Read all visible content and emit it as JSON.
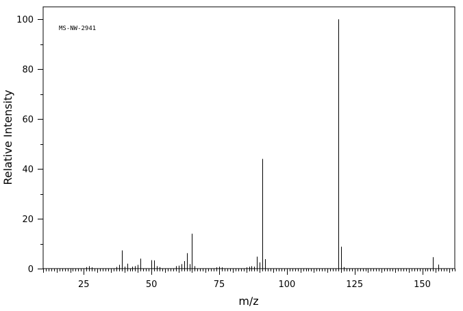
{
  "chart_data": {
    "type": "bar",
    "subtype": "mass-spectrum-stick",
    "annotation": "MS-NW-2941",
    "xlabel": "m/z",
    "ylabel": "Relative Intensity",
    "xlim": [
      10,
      162
    ],
    "ylim": [
      0,
      105
    ],
    "xticks": [
      25,
      50,
      75,
      100,
      125,
      150
    ],
    "yticks": [
      0,
      20,
      40,
      60,
      80,
      100
    ],
    "grid": false,
    "legend": "none",
    "peaks": [
      {
        "mz": 26,
        "intensity": 0.6
      },
      {
        "mz": 27,
        "intensity": 1.0
      },
      {
        "mz": 28,
        "intensity": 0.5
      },
      {
        "mz": 37,
        "intensity": 0.7
      },
      {
        "mz": 38,
        "intensity": 1.5
      },
      {
        "mz": 39,
        "intensity": 7.3
      },
      {
        "mz": 40,
        "intensity": 0.8
      },
      {
        "mz": 41,
        "intensity": 2.0
      },
      {
        "mz": 43,
        "intensity": 0.8
      },
      {
        "mz": 44,
        "intensity": 1.0
      },
      {
        "mz": 45,
        "intensity": 1.5
      },
      {
        "mz": 46,
        "intensity": 4.0
      },
      {
        "mz": 50,
        "intensity": 3.4
      },
      {
        "mz": 51,
        "intensity": 3.3
      },
      {
        "mz": 52,
        "intensity": 1.0
      },
      {
        "mz": 53,
        "intensity": 0.6
      },
      {
        "mz": 59,
        "intensity": 1.0
      },
      {
        "mz": 60,
        "intensity": 1.2
      },
      {
        "mz": 61,
        "intensity": 1.8
      },
      {
        "mz": 62,
        "intensity": 3.0
      },
      {
        "mz": 63,
        "intensity": 6.2
      },
      {
        "mz": 64,
        "intensity": 1.8
      },
      {
        "mz": 65,
        "intensity": 14.0
      },
      {
        "mz": 66,
        "intensity": 1.0
      },
      {
        "mz": 74,
        "intensity": 0.5
      },
      {
        "mz": 75,
        "intensity": 0.8
      },
      {
        "mz": 76,
        "intensity": 0.5
      },
      {
        "mz": 85,
        "intensity": 0.5
      },
      {
        "mz": 86,
        "intensity": 0.8
      },
      {
        "mz": 87,
        "intensity": 1.0
      },
      {
        "mz": 88,
        "intensity": 0.8
      },
      {
        "mz": 89,
        "intensity": 4.8
      },
      {
        "mz": 90,
        "intensity": 2.5
      },
      {
        "mz": 91,
        "intensity": 44.0
      },
      {
        "mz": 92,
        "intensity": 3.8
      },
      {
        "mz": 119,
        "intensity": 100.0
      },
      {
        "mz": 120,
        "intensity": 8.8
      },
      {
        "mz": 121,
        "intensity": 0.6
      },
      {
        "mz": 154,
        "intensity": 4.6
      },
      {
        "mz": 156,
        "intensity": 1.6
      }
    ]
  }
}
